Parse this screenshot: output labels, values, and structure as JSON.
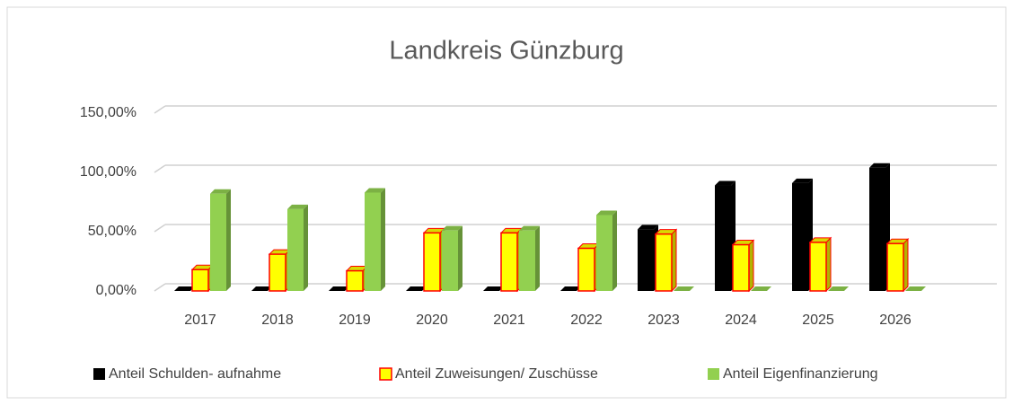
{
  "chart_data": {
    "type": "bar",
    "title": "Landkreis Günzburg",
    "categories": [
      "2017",
      "2018",
      "2019",
      "2020",
      "2021",
      "2022",
      "2023",
      "2024",
      "2025",
      "2026"
    ],
    "series": [
      {
        "name": "Anteil Schulden- aufnahme",
        "color": "#000000",
        "values": [
          0,
          0,
          0,
          0,
          0,
          0,
          52,
          89,
          91,
          104
        ]
      },
      {
        "name": "Anteil Zuweisungen/ Zuschüsse",
        "color": "#ffff00",
        "stroke": "#ff0000",
        "values": [
          18,
          31,
          17,
          49,
          49,
          36,
          48,
          39,
          41,
          40
        ]
      },
      {
        "name": "Anteil Eigenfinanzierung",
        "color": "#92d050",
        "values": [
          82,
          69,
          83,
          51,
          51,
          64,
          0,
          0,
          0,
          0
        ]
      }
    ],
    "ylim": [
      0,
      150
    ],
    "yticks": [
      {
        "value": 0,
        "label": "0,00%"
      },
      {
        "value": 50,
        "label": "50,00%"
      },
      {
        "value": 100,
        "label": "100,00%"
      },
      {
        "value": 150,
        "label": "150,00%"
      }
    ],
    "grid": true,
    "legend": "bottom"
  }
}
